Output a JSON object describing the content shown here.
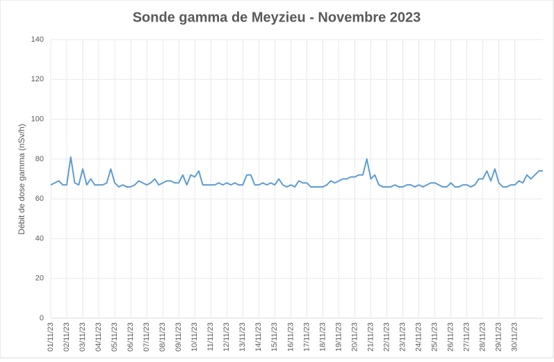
{
  "chart_data": {
    "type": "line",
    "title": "Sonde gamma de Meyzieu - Novembre 2023",
    "y_label": "Débit de dose gamma (nSv/h)",
    "categories": [
      "01/11/23",
      null,
      null,
      null,
      "02/11/23",
      null,
      null,
      null,
      "03/11/23",
      null,
      null,
      null,
      "04/11/23",
      null,
      null,
      null,
      "05/11/23",
      null,
      null,
      null,
      "06/11/23",
      null,
      null,
      null,
      "07/11/23",
      null,
      null,
      null,
      "08/11/23",
      null,
      null,
      null,
      "09/11/23",
      null,
      null,
      null,
      "10/11/23",
      null,
      null,
      null,
      "11/11/23",
      null,
      null,
      null,
      "12/11/23",
      null,
      null,
      null,
      "13/11/23",
      null,
      null,
      null,
      "14/11/23",
      null,
      null,
      null,
      "15/11/23",
      null,
      null,
      null,
      "16/11/23",
      null,
      null,
      null,
      "17/11/23",
      null,
      null,
      null,
      "18/11/23",
      null,
      null,
      null,
      "19/11/23",
      null,
      null,
      null,
      "20/11/23",
      null,
      null,
      null,
      "21/11/23",
      null,
      null,
      null,
      "22/11/23",
      null,
      null,
      null,
      "23/11/23",
      null,
      null,
      null,
      "24/11/23",
      null,
      null,
      null,
      "25/11/23",
      null,
      null,
      null,
      "26/11/23",
      null,
      null,
      null,
      "27/11/23",
      null,
      null,
      null,
      "28/11/23",
      null,
      null,
      null,
      "29/11/23",
      null,
      null,
      null,
      "30/11/23",
      null,
      null,
      null,
      null,
      null,
      null,
      null
    ],
    "series": [
      {
        "name": "Débit de dose",
        "color": "#5b9bd5",
        "values": [
          67,
          68,
          69,
          67,
          67,
          81,
          68,
          67,
          75,
          67,
          70,
          67,
          67,
          67,
          68,
          75,
          68,
          66,
          67,
          66,
          66,
          67,
          69,
          68,
          67,
          68,
          70,
          67,
          68,
          69,
          69,
          68,
          68,
          72,
          67,
          72,
          71,
          74,
          67,
          67,
          67,
          67,
          68,
          67,
          68,
          67,
          68,
          67,
          67,
          72,
          72,
          67,
          67,
          68,
          67,
          68,
          67,
          70,
          67,
          66,
          67,
          66,
          69,
          68,
          68,
          66,
          66,
          66,
          66,
          67,
          69,
          68,
          69,
          70,
          70,
          71,
          71,
          72,
          72,
          80,
          70,
          72,
          67,
          66,
          66,
          66,
          67,
          66,
          66,
          67,
          67,
          66,
          67,
          66,
          67,
          68,
          68,
          67,
          66,
          66,
          68,
          66,
          66,
          67,
          67,
          66,
          67,
          70,
          70,
          74,
          69,
          75,
          68,
          66,
          66,
          67,
          67,
          69,
          68,
          72,
          70,
          72,
          74,
          74
        ]
      }
    ],
    "ylim": [
      0,
      140
    ],
    "yticks": [
      0,
      20,
      40,
      60,
      80,
      100,
      120,
      140
    ],
    "grid": true
  }
}
